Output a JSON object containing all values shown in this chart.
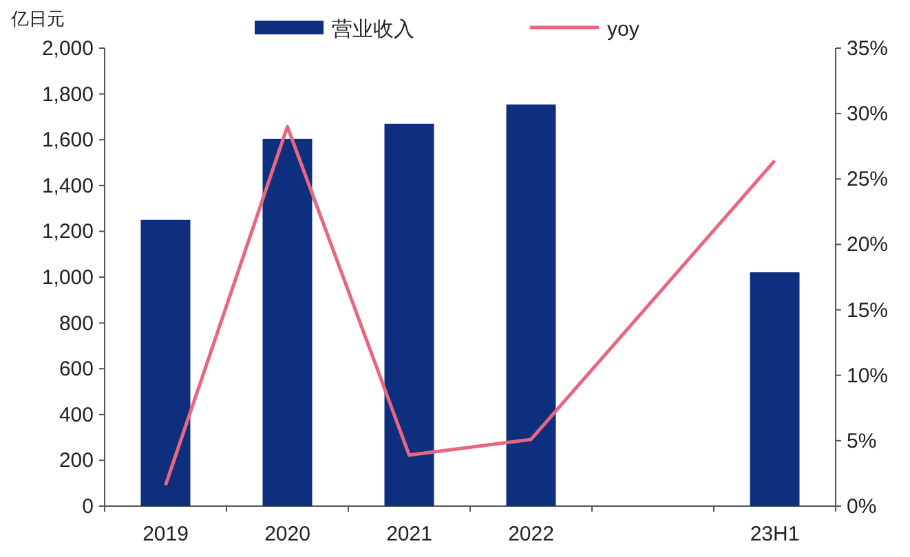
{
  "chart_data": {
    "type": "bar",
    "ylabel": "亿日元",
    "categories": [
      "2019",
      "2020",
      "2021",
      "2022",
      null,
      "23H1"
    ],
    "series": [
      {
        "name": "营业收入",
        "color": "#0d2f7e",
        "values": [
          1250,
          1604,
          1670,
          1754,
          null,
          1021
        ]
      },
      {
        "name": "yoy",
        "type": "line",
        "axis": "y2",
        "color": "#e8667f",
        "values": [
          1.6,
          29,
          3.9,
          5.1,
          null,
          26.4
        ]
      }
    ],
    "ylim": [
      0,
      2000
    ],
    "yticks": [
      {
        "value": 0,
        "label": "0"
      },
      {
        "value": 200,
        "label": "200"
      },
      {
        "value": 400,
        "label": "400"
      },
      {
        "value": 600,
        "label": "600"
      },
      {
        "value": 800,
        "label": "800"
      },
      {
        "value": 1000,
        "label": "1,000"
      },
      {
        "value": 1200,
        "label": "1,200"
      },
      {
        "value": 1400,
        "label": "1,400"
      },
      {
        "value": 1600,
        "label": "1,600"
      },
      {
        "value": 1800,
        "label": "1,800"
      },
      {
        "value": 2000,
        "label": "2,000"
      }
    ],
    "y2lim": [
      0,
      35
    ],
    "y2ticks": [
      {
        "value": 0,
        "label": "0%"
      },
      {
        "value": 5,
        "label": "5%"
      },
      {
        "value": 10,
        "label": "10%"
      },
      {
        "value": 15,
        "label": "15%"
      },
      {
        "value": 20,
        "label": "20%"
      },
      {
        "value": 25,
        "label": "25%"
      },
      {
        "value": 30,
        "label": "30%"
      },
      {
        "value": 35,
        "label": "35%"
      }
    ],
    "legend": "top",
    "grid": false
  }
}
